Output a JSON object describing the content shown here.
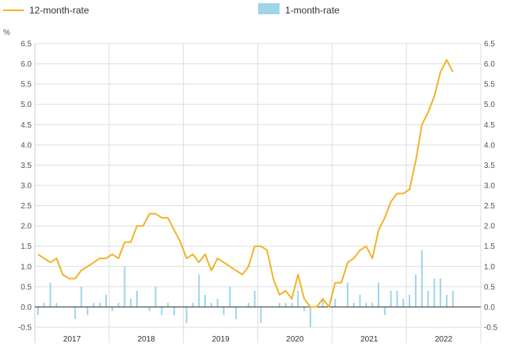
{
  "chart_data": {
    "type": "bar+line",
    "y_unit": "%",
    "ylim": [
      -0.5,
      6.5
    ],
    "yticks": [
      -0.5,
      0.0,
      0.5,
      1.0,
      1.5,
      2.0,
      2.5,
      3.0,
      3.5,
      4.0,
      4.5,
      5.0,
      5.5,
      6.0,
      6.5
    ],
    "ytick_labels": [
      "-0.5",
      "0.0",
      "0.5",
      "1.0",
      "1.5",
      "2.0",
      "2.5",
      "3.0",
      "3.5",
      "4.0",
      "4.5",
      "5.0",
      "5.5",
      "6.0",
      "6.5"
    ],
    "years": [
      "2017",
      "2018",
      "2019",
      "2020",
      "2021",
      "2022"
    ],
    "grid": true,
    "legend_position": "top-left",
    "colors": {
      "line": "#f0b429",
      "bar": "#9fd4ea",
      "grid": "#dddddd",
      "axis": "#333333"
    },
    "series": [
      {
        "name": "12-month-rate",
        "kind": "line",
        "values": [
          1.3,
          1.2,
          1.1,
          1.2,
          0.8,
          0.7,
          0.7,
          0.9,
          1.0,
          1.1,
          1.2,
          1.2,
          1.3,
          1.2,
          1.6,
          1.6,
          2.0,
          2.0,
          2.3,
          2.3,
          2.2,
          2.2,
          1.9,
          1.6,
          1.2,
          1.3,
          1.1,
          1.3,
          0.9,
          1.2,
          1.1,
          1.0,
          0.9,
          0.8,
          1.0,
          1.5,
          1.5,
          1.4,
          0.7,
          0.3,
          0.4,
          0.2,
          0.8,
          0.2,
          0.0,
          0.0,
          0.2,
          0.0,
          0.6,
          0.6,
          1.1,
          1.2,
          1.4,
          1.5,
          1.2,
          1.9,
          2.2,
          2.6,
          2.8,
          2.8,
          2.9,
          3.6,
          4.5,
          4.8,
          5.2,
          5.8,
          6.1,
          5.8
        ]
      },
      {
        "name": "1-month-rate",
        "kind": "bar",
        "values": [
          -0.2,
          0.1,
          0.6,
          0.1,
          0.0,
          0.0,
          -0.3,
          0.5,
          -0.2,
          0.1,
          0.1,
          0.3,
          -0.1,
          0.1,
          1.0,
          0.2,
          0.4,
          0.0,
          -0.1,
          0.5,
          -0.2,
          0.1,
          -0.2,
          0.0,
          -0.4,
          0.1,
          0.8,
          0.3,
          0.1,
          0.2,
          -0.2,
          0.5,
          -0.3,
          0.0,
          0.1,
          0.4,
          -0.4,
          0.0,
          0.0,
          0.1,
          0.1,
          0.1,
          0.4,
          -0.1,
          -0.5,
          0.0,
          0.2,
          0.0,
          0.2,
          0.0,
          0.6,
          0.1,
          0.3,
          0.1,
          0.1,
          0.6,
          -0.2,
          0.4,
          0.4,
          0.2,
          0.3,
          0.8,
          1.4,
          0.4,
          0.7,
          0.7,
          0.3,
          0.4
        ]
      }
    ]
  }
}
